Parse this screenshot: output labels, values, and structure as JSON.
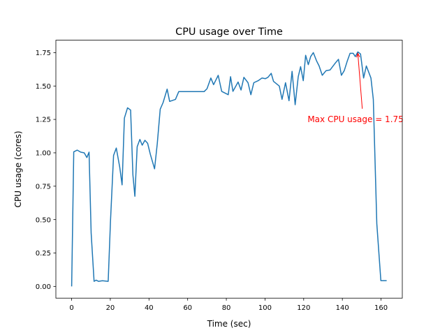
{
  "chart_data": {
    "type": "line",
    "title": "CPU usage over Time",
    "xlabel": "Time (sec)",
    "ylabel": "CPU usage (cores)",
    "xlim": [
      -8.15,
      171.0
    ],
    "ylim": [
      -0.088,
      1.843
    ],
    "xticks": [
      0,
      20,
      40,
      60,
      80,
      100,
      120,
      140,
      160
    ],
    "xtick_labels": [
      "0",
      "20",
      "40",
      "60",
      "80",
      "100",
      "120",
      "140",
      "160"
    ],
    "yticks": [
      0,
      0.25,
      0.5,
      0.75,
      1.0,
      1.25,
      1.5,
      1.75
    ],
    "ytick_labels": [
      "0.00",
      "0.25",
      "0.50",
      "0.75",
      "1.00",
      "1.25",
      "1.50",
      "1.75"
    ],
    "grid": false,
    "series": [
      {
        "name": "CPU usage",
        "color": "#1f77b4",
        "x": [
          0,
          1.1,
          2.9,
          4.7,
          6.5,
          7.9,
          9,
          10.1,
          11.6,
          12.7,
          13.9,
          15.9,
          18.9,
          20.1,
          21.7,
          23.1,
          24.9,
          26.1,
          27.3,
          28.9,
          30.5,
          31.7,
          32.7,
          33.9,
          35.3,
          36.5,
          37.9,
          39.3,
          40.7,
          42.9,
          44.3,
          45.8,
          47.3,
          49.4,
          50.7,
          53.7,
          55.4,
          68.5,
          70,
          72,
          73.4,
          75.8,
          77.6,
          81,
          82.2,
          83.4,
          86.1,
          87.6,
          89.1,
          91.2,
          92.7,
          94.2,
          96.5,
          98.4,
          100.2,
          101.5,
          103.2,
          104.4,
          107.4,
          108.8,
          110.6,
          112.4,
          114,
          115.6,
          117.2,
          118.4,
          119.8,
          121,
          122.4,
          123.6,
          125,
          126.6,
          128,
          129.6,
          131.6,
          133.6,
          136.5,
          138,
          139.5,
          141,
          142.5,
          144,
          145.6,
          146.7,
          148,
          149.4,
          151,
          152.4,
          154.8,
          156,
          157.8,
          159.9,
          162.9
        ],
        "y": [
          0,
          1.007,
          1.02,
          1.005,
          1.0,
          0.965,
          1.005,
          0.4,
          0.038,
          0.047,
          0.038,
          0.042,
          0.038,
          0.49,
          0.98,
          1.036,
          0.89,
          0.76,
          1.26,
          1.337,
          1.32,
          0.835,
          0.675,
          1.045,
          1.1,
          1.057,
          1.094,
          1.071,
          0.99,
          0.88,
          1.07,
          1.327,
          1.376,
          1.477,
          1.385,
          1.4,
          1.458,
          1.458,
          1.48,
          1.56,
          1.51,
          1.58,
          1.46,
          1.435,
          1.57,
          1.46,
          1.53,
          1.47,
          1.565,
          1.525,
          1.435,
          1.525,
          1.54,
          1.56,
          1.555,
          1.565,
          1.595,
          1.535,
          1.5,
          1.4,
          1.525,
          1.39,
          1.61,
          1.36,
          1.57,
          1.645,
          1.54,
          1.73,
          1.66,
          1.72,
          1.75,
          1.69,
          1.65,
          1.58,
          1.615,
          1.62,
          1.675,
          1.7,
          1.58,
          1.615,
          1.685,
          1.745,
          1.745,
          1.72,
          1.755,
          1.74,
          1.56,
          1.65,
          1.56,
          1.4,
          0.47,
          0.043,
          0.043
        ]
      }
    ],
    "annotations": [
      {
        "text": "Max CPU usage = 1.75",
        "xy": [
          148,
          1.755
        ],
        "xytext": [
          122,
          1.25
        ],
        "arrow_tail": [
          150.3,
          1.33
        ],
        "color": "#ff0000"
      }
    ]
  }
}
